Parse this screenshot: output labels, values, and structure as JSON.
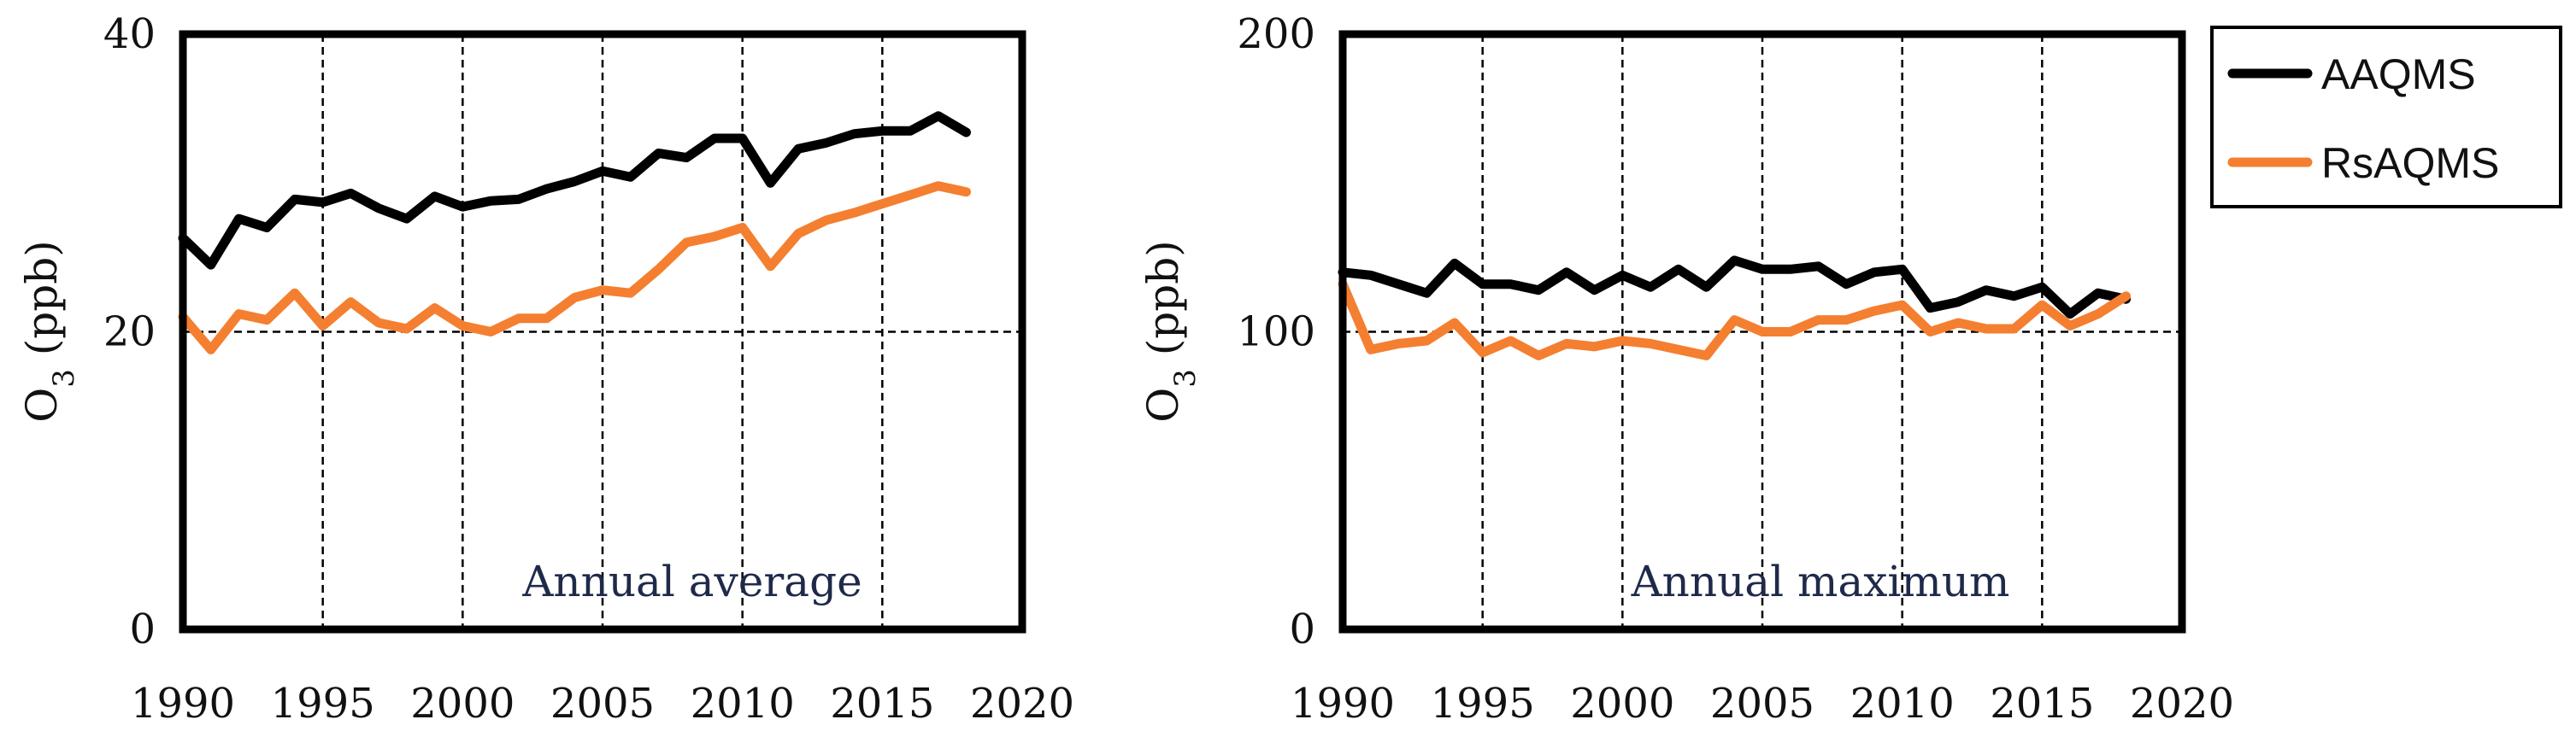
{
  "chart_data": [
    {
      "type": "line",
      "panel": "left",
      "title": "",
      "annotation": "Annual average",
      "xlabel": "",
      "ylabel_main": "O",
      "ylabel_sub": "3",
      "ylabel_unit": " (ppb)",
      "xlim": [
        1990,
        2020
      ],
      "ylim": [
        0,
        40
      ],
      "xticks": [
        1990,
        1995,
        2000,
        2005,
        2010,
        2015,
        2020
      ],
      "yticks": [
        0,
        20,
        40
      ],
      "grid": "dashed",
      "x": [
        1990,
        1991,
        1992,
        1993,
        1994,
        1995,
        1996,
        1997,
        1998,
        1999,
        2000,
        2001,
        2002,
        2003,
        2004,
        2005,
        2006,
        2007,
        2008,
        2009,
        2010,
        2011,
        2012,
        2013,
        2014,
        2015,
        2016,
        2017,
        2018
      ],
      "series": [
        {
          "name": "AAQMS",
          "color": "#000000",
          "values": [
            26.3,
            24.5,
            27.6,
            27.0,
            28.9,
            28.7,
            29.3,
            28.3,
            27.6,
            29.1,
            28.4,
            28.8,
            28.9,
            29.6,
            30.1,
            30.8,
            30.4,
            32.0,
            31.7,
            33.0,
            33.0,
            30.0,
            32.3,
            32.7,
            33.3,
            33.5,
            33.5,
            34.5,
            33.4
          ]
        },
        {
          "name": "RsAQMS",
          "color": "#f47f30",
          "values": [
            21.0,
            18.8,
            21.2,
            20.8,
            22.6,
            20.4,
            22.0,
            20.6,
            20.2,
            21.6,
            20.4,
            20.0,
            20.9,
            20.9,
            22.3,
            22.8,
            22.6,
            24.2,
            26.0,
            26.4,
            27.0,
            24.4,
            26.6,
            27.5,
            28.0,
            28.6,
            29.2,
            29.8,
            29.4
          ]
        }
      ]
    },
    {
      "type": "line",
      "panel": "right",
      "title": "",
      "annotation": "Annual maximum",
      "xlabel": "",
      "ylabel_main": "O",
      "ylabel_sub": "3",
      "ylabel_unit": " (ppb)",
      "xlim": [
        1990,
        2020
      ],
      "ylim": [
        0,
        200
      ],
      "xticks": [
        1990,
        1995,
        2000,
        2005,
        2010,
        2015,
        2020
      ],
      "yticks": [
        0,
        100,
        200
      ],
      "grid": "dashed",
      "x": [
        1990,
        1991,
        1992,
        1993,
        1994,
        1995,
        1996,
        1997,
        1998,
        1999,
        2000,
        2001,
        2002,
        2003,
        2004,
        2005,
        2006,
        2007,
        2008,
        2009,
        2010,
        2011,
        2012,
        2013,
        2014,
        2015,
        2016,
        2017,
        2018
      ],
      "series": [
        {
          "name": "AAQMS",
          "color": "#000000",
          "values": [
            120,
            119,
            116,
            113,
            123,
            116,
            116,
            114,
            120,
            114,
            119,
            115,
            121,
            115,
            124,
            121,
            121,
            122,
            116,
            120,
            121,
            108,
            110,
            114,
            112,
            115,
            106,
            113,
            111
          ]
        },
        {
          "name": "RsAQMS",
          "color": "#f47f30",
          "values": [
            116,
            94,
            96,
            97,
            103,
            93,
            97,
            92,
            96,
            95,
            97,
            96,
            94,
            92,
            104,
            100,
            100,
            104,
            104,
            107,
            109,
            100,
            103,
            101,
            101,
            109,
            102,
            106,
            112
          ]
        }
      ]
    }
  ],
  "legend": {
    "position": "top-right",
    "items": [
      {
        "label": "AAQMS",
        "color": "#000000"
      },
      {
        "label": "RsAQMS",
        "color": "#f47f30"
      }
    ]
  }
}
